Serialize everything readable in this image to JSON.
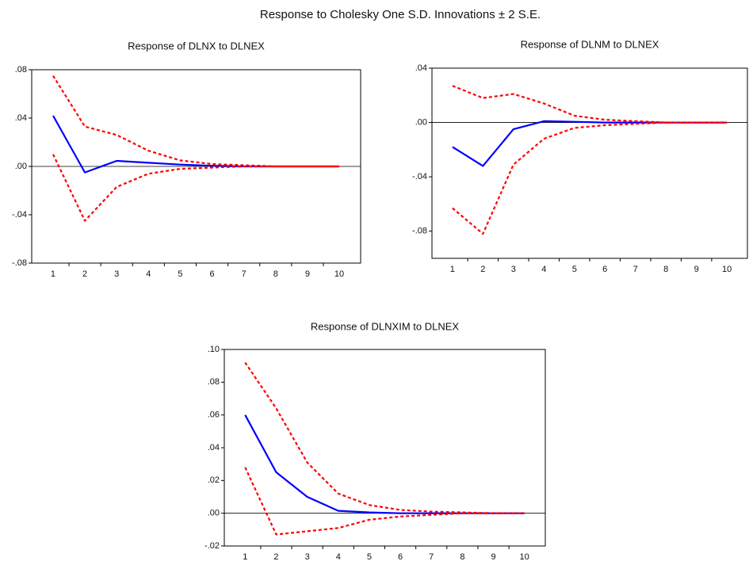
{
  "title": "Response to Cholesky One S.D. Innovations ± 2 S.E.",
  "chart_data": [
    {
      "type": "line",
      "title": "Response of DLNX to DLNEX",
      "categories": [
        "1",
        "2",
        "3",
        "4",
        "5",
        "6",
        "7",
        "8",
        "9",
        "10"
      ],
      "ylim": [
        -0.08,
        0.08
      ],
      "yticks": [
        {
          "value": -0.08,
          "label": "-.08"
        },
        {
          "value": -0.04,
          "label": "-.04"
        },
        {
          "value": 0,
          "label": ".00"
        },
        {
          "value": 0.04,
          "label": ".04"
        },
        {
          "value": 0.08,
          "label": ".08"
        }
      ],
      "series": [
        {
          "color": "#0000ff",
          "dashed": false,
          "values": [
            0.042,
            -0.005,
            0.0046,
            0.003,
            0.0015,
            0.0005,
            0,
            0,
            0,
            0
          ]
        },
        {
          "color": "#ff0000",
          "dashed": true,
          "values": [
            0.075,
            0.033,
            0.026,
            0.013,
            0.005,
            0.002,
            0.001,
            0,
            0,
            0
          ]
        },
        {
          "color": "#ff0000",
          "dashed": true,
          "values": [
            0.01,
            -0.045,
            -0.017,
            -0.006,
            -0.002,
            -0.001,
            0,
            0,
            0,
            0
          ]
        }
      ]
    },
    {
      "type": "line",
      "title": "Response of DLNM to DLNEX",
      "categories": [
        "1",
        "2",
        "3",
        "4",
        "5",
        "6",
        "7",
        "8",
        "9",
        "10"
      ],
      "ylim": [
        -0.1,
        0.04
      ],
      "yticks": [
        {
          "value": -0.08,
          "label": "-.08"
        },
        {
          "value": -0.04,
          "label": "-.04"
        },
        {
          "value": 0,
          "label": ".00"
        },
        {
          "value": 0.04,
          "label": ".04"
        }
      ],
      "series": [
        {
          "color": "#0000ff",
          "dashed": false,
          "values": [
            -0.018,
            -0.032,
            -0.005,
            0.001,
            0.0005,
            0,
            0,
            0,
            0,
            0
          ]
        },
        {
          "color": "#ff0000",
          "dashed": true,
          "values": [
            0.027,
            0.018,
            0.021,
            0.014,
            0.005,
            0.002,
            0.001,
            0,
            0,
            0
          ]
        },
        {
          "color": "#ff0000",
          "dashed": true,
          "values": [
            -0.063,
            -0.082,
            -0.031,
            -0.012,
            -0.004,
            -0.002,
            -0.001,
            0,
            0,
            0
          ]
        }
      ]
    },
    {
      "type": "line",
      "title": "Response of DLNXIM to DLNEX",
      "categories": [
        "1",
        "2",
        "3",
        "4",
        "5",
        "6",
        "7",
        "8",
        "9",
        "10"
      ],
      "ylim": [
        -0.02,
        0.1
      ],
      "yticks": [
        {
          "value": -0.02,
          "label": "-.02"
        },
        {
          "value": 0,
          "label": ".00"
        },
        {
          "value": 0.02,
          "label": ".02"
        },
        {
          "value": 0.04,
          "label": ".04"
        },
        {
          "value": 0.06,
          "label": ".06"
        },
        {
          "value": 0.08,
          "label": ".08"
        },
        {
          "value": 0.1,
          "label": ".10"
        }
      ],
      "series": [
        {
          "color": "#0000ff",
          "dashed": false,
          "values": [
            0.06,
            0.025,
            0.01,
            0.0015,
            0.0005,
            0,
            0,
            0,
            0,
            0
          ]
        },
        {
          "color": "#ff0000",
          "dashed": true,
          "values": [
            0.092,
            0.064,
            0.031,
            0.012,
            0.005,
            0.002,
            0.001,
            0.0005,
            0,
            0
          ]
        },
        {
          "color": "#ff0000",
          "dashed": true,
          "values": [
            0.028,
            -0.013,
            -0.011,
            -0.009,
            -0.004,
            -0.002,
            -0.001,
            0,
            0,
            0
          ]
        }
      ]
    }
  ]
}
